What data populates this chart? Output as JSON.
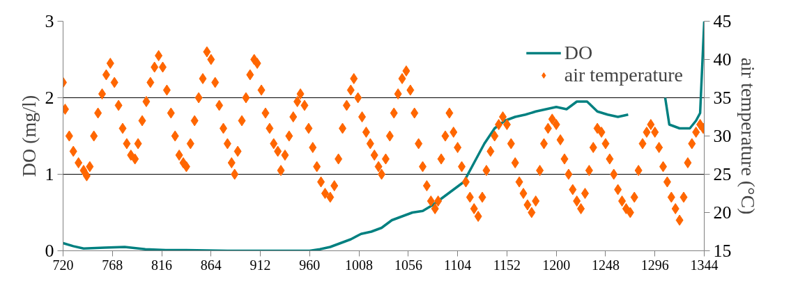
{
  "chart_data": {
    "type": "line",
    "ylabel": "DO (mg/l)",
    "y2label": "air temperature (°C)",
    "xlim": [
      720,
      1344
    ],
    "xticks": [
      720,
      768,
      816,
      864,
      912,
      960,
      1008,
      1056,
      1104,
      1152,
      1200,
      1248,
      1296,
      1344
    ],
    "ylim": [
      0,
      3
    ],
    "yticks": [
      0,
      1,
      2,
      3
    ],
    "y2lim": [
      15,
      45
    ],
    "y2ticks": [
      15,
      20,
      25,
      30,
      35,
      40,
      45
    ],
    "grid": "y",
    "legend": "top right",
    "series": [
      {
        "name": "DO",
        "color": "#008080",
        "line_style": "solid",
        "marker": "none",
        "x": [
          720,
          730,
          740,
          760,
          780,
          800,
          820,
          840,
          880,
          920,
          960,
          970,
          980,
          990,
          1000,
          1010,
          1020,
          1030,
          1040,
          1050,
          1060,
          1070,
          1080,
          1090,
          1100,
          1110,
          1120,
          1130,
          1140,
          1150,
          1160,
          1170,
          1180,
          1190,
          1200,
          1210,
          1220,
          1230,
          1240,
          1250,
          1260,
          1270,
          1280,
          1290,
          1300,
          1306,
          1310,
          1320,
          1330,
          1336,
          1340,
          1344
        ],
        "values": [
          0.1,
          0.06,
          0.03,
          0.04,
          0.05,
          0.02,
          0.01,
          0.01,
          0.0,
          0.0,
          0.0,
          0.02,
          0.05,
          0.1,
          0.15,
          0.22,
          0.25,
          0.3,
          0.4,
          0.45,
          0.5,
          0.52,
          0.6,
          0.7,
          0.8,
          0.9,
          1.15,
          1.4,
          1.6,
          1.7,
          1.75,
          1.78,
          1.82,
          1.85,
          1.88,
          1.85,
          1.95,
          1.95,
          1.82,
          1.78,
          1.75,
          1.78,
          null,
          null,
          null,
          2.0,
          1.65,
          1.6,
          1.6,
          1.7,
          1.8,
          3.0
        ]
      },
      {
        "name": "air temperature",
        "type": "scatter",
        "axis": "y2",
        "color": "#ff6600",
        "marker": "diamond",
        "x": [
          720,
          722,
          726,
          730,
          735,
          740,
          743,
          746,
          750,
          754,
          758,
          762,
          766,
          770,
          774,
          778,
          782,
          786,
          790,
          793,
          797,
          801,
          805,
          809,
          813,
          817,
          821,
          825,
          829,
          833,
          837,
          840,
          844,
          848,
          852,
          856,
          860,
          864,
          868,
          872,
          876,
          880,
          884,
          887,
          890,
          894,
          898,
          902,
          906,
          909,
          913,
          917,
          921,
          925,
          929,
          932,
          936,
          940,
          944,
          948,
          951,
          955,
          959,
          963,
          967,
          971,
          975,
          980,
          984,
          988,
          992,
          996,
          1000,
          1003,
          1007,
          1011,
          1015,
          1019,
          1023,
          1027,
          1030,
          1034,
          1038,
          1042,
          1046,
          1050,
          1054,
          1058,
          1062,
          1066,
          1070,
          1074,
          1078,
          1082,
          1085,
          1088,
          1092,
          1096,
          1100,
          1104,
          1108,
          1112,
          1116,
          1120,
          1124,
          1128,
          1132,
          1136,
          1140,
          1144,
          1148,
          1152,
          1156,
          1160,
          1164,
          1168,
          1172,
          1176,
          1180,
          1184,
          1188,
          1192,
          1196,
          1200,
          1204,
          1208,
          1212,
          1216,
          1220,
          1224,
          1228,
          1232,
          1236,
          1240,
          1244,
          1248,
          1252,
          1256,
          1260,
          1264,
          1268,
          1272,
          1276,
          1280,
          1284,
          1288,
          1292,
          1296,
          1300,
          1304,
          1308,
          1312,
          1316,
          1320,
          1324,
          1328,
          1332,
          1336,
          1340,
          1343
        ],
        "values": [
          37,
          33.5,
          30,
          28,
          26.5,
          25.5,
          24.8,
          26,
          30,
          33,
          35.5,
          38,
          39.5,
          37,
          34,
          31,
          29,
          27.5,
          27,
          29,
          32,
          34.5,
          37,
          39,
          40.5,
          39,
          36,
          33,
          30,
          27.5,
          26.5,
          26,
          29,
          32,
          35,
          37.5,
          41,
          40,
          37,
          34,
          31,
          29,
          26.5,
          25,
          28,
          32,
          35,
          38,
          40,
          39.5,
          36,
          33,
          31,
          29,
          28,
          25.5,
          27.5,
          30,
          32.5,
          34.5,
          35.5,
          34,
          31,
          28.5,
          26,
          24,
          22.5,
          22,
          23.5,
          27,
          31,
          34,
          36,
          37.5,
          35,
          32.5,
          30.5,
          29,
          27.5,
          26,
          25,
          27,
          30,
          33,
          35.5,
          37.5,
          38.5,
          36,
          33,
          29,
          26,
          23.5,
          21.5,
          20.5,
          21.5,
          27,
          30,
          33,
          30.5,
          28.5,
          26,
          24,
          22,
          20.5,
          19.5,
          22,
          25.5,
          28,
          30,
          31.5,
          32.5,
          31.5,
          29,
          26.5,
          24,
          22.5,
          21,
          20,
          21.5,
          25.5,
          29,
          31,
          32.2,
          31.5,
          29.5,
          27,
          25,
          23,
          21.5,
          20.5,
          22.5,
          25.5,
          28.5,
          31,
          30.5,
          29,
          27,
          25,
          23,
          21.5,
          20.5,
          20,
          22,
          25.5,
          29,
          30.5,
          31.5,
          30.5,
          28.5,
          26,
          24,
          22,
          20.5,
          19,
          22,
          26.5,
          29,
          30.5,
          31.5,
          31
        ]
      }
    ]
  }
}
